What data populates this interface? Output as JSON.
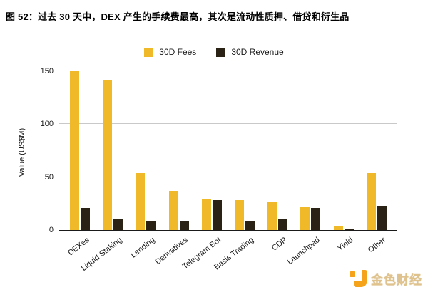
{
  "title": "图 52：过去 30 天中，DEX 产生的手续费最高，其次是流动性质押、借贷和衍生品",
  "legend": [
    {
      "label": "30D Fees",
      "color": "#f0b929"
    },
    {
      "label": "30D Revenue",
      "color": "#2a2315"
    }
  ],
  "y_axis": {
    "label": "Value (US$M)",
    "ticks": [
      0,
      50,
      100,
      150
    ]
  },
  "chart_data": {
    "type": "bar",
    "title": "图 52：过去 30 天中，DEX 产生的手续费最高，其次是流动性质押、借贷和衍生品",
    "categories": [
      "DEXes",
      "Liquid Staking",
      "Lending",
      "Derivatives",
      "Telegram Bot",
      "Basis Trading",
      "CDP",
      "Launchpad",
      "Yield",
      "Other"
    ],
    "series": [
      {
        "name": "30D Fees",
        "color": "#f0b929",
        "values": [
          151,
          141,
          54,
          37,
          29,
          28,
          27,
          22,
          3.5,
          54
        ]
      },
      {
        "name": "30D Revenue",
        "color": "#2a2315",
        "values": [
          21,
          11,
          8,
          8.5,
          28,
          9,
          11,
          21,
          1.5,
          23
        ]
      }
    ],
    "xlabel": "",
    "ylabel": "Value (US$M)",
    "ylim": [
      0,
      155
    ],
    "yticks": [
      0,
      50,
      100,
      150
    ],
    "grid": true,
    "legend_position": "top"
  },
  "footer_logo": {
    "text": "金色财经",
    "icon": "jinse-logo-icon",
    "icon_color": "#f5a31a",
    "text_color": "#dfc28c"
  }
}
